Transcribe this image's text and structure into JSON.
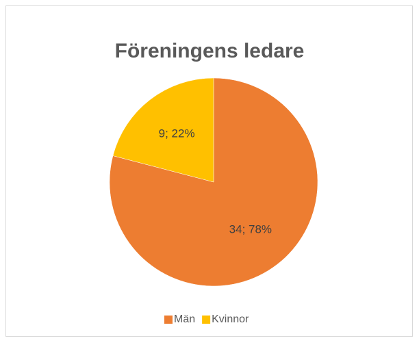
{
  "chart_data": {
    "type": "pie",
    "title": "Föreningens ledare",
    "categories": [
      "Män",
      "Kvinnor"
    ],
    "values": [
      34,
      9
    ],
    "value_labels": [
      "34; 78%",
      "9; 22%"
    ],
    "colors": [
      "#ED7D31",
      "#FFC000"
    ],
    "legend": "bottom"
  }
}
